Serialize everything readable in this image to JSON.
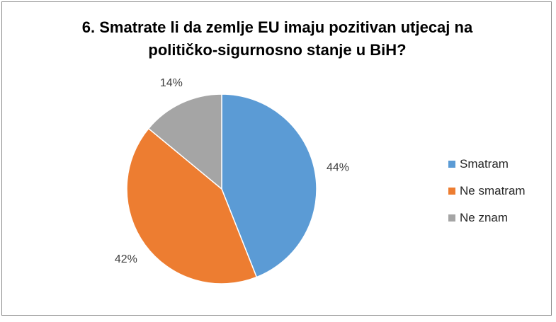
{
  "chart_data": {
    "type": "pie",
    "title": "6. Smatrate li da zemlje EU imaju pozitivan utjecaj na političko-sigurnosno stanje u BiH?",
    "title_lines": [
      "6. Smatrate li da zemlje EU imaju pozitivan utjecaj na",
      "političko-sigurnosno stanje u BiH?"
    ],
    "categories": [
      "Smatram",
      "Ne smatram",
      "Ne znam"
    ],
    "values": [
      44,
      42,
      14
    ],
    "data_labels": [
      "44%",
      "42%",
      "14%"
    ],
    "colors": [
      "#5b9bd5",
      "#ed7d31",
      "#a5a5a5"
    ],
    "legend_position": "right",
    "start_angle_deg": 0,
    "direction": "clockwise"
  }
}
